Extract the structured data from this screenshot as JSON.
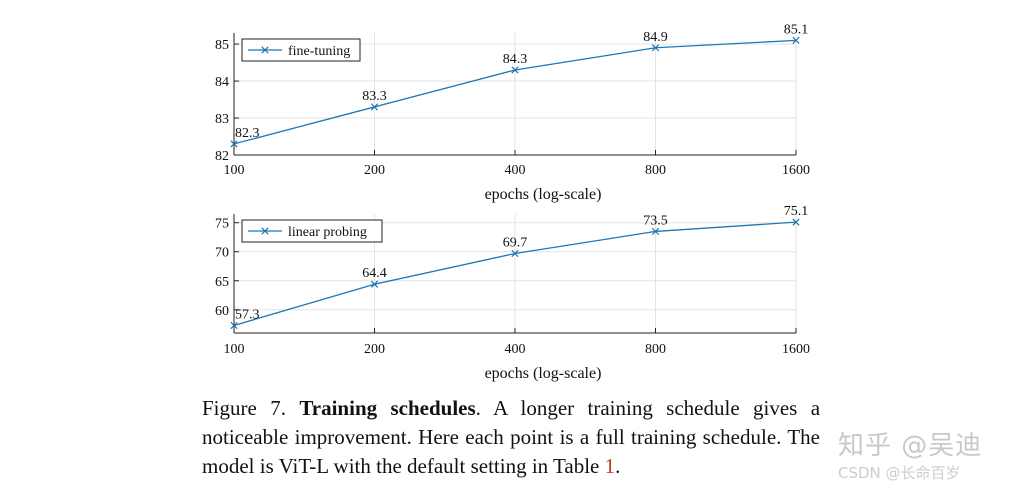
{
  "chart_data": [
    {
      "type": "line",
      "xscale": "log",
      "categories": [
        "100",
        "200",
        "400",
        "800",
        "1600"
      ],
      "x": [
        100,
        200,
        400,
        800,
        1600
      ],
      "series": [
        {
          "name": "fine-tuning",
          "values": [
            82.3,
            83.3,
            84.3,
            84.9,
            85.1
          ]
        }
      ],
      "data_labels": [
        "82.3",
        "83.3",
        "84.3",
        "84.9",
        "85.1"
      ],
      "xlabel": "epochs (log-scale)",
      "ylabel": "",
      "ylim": [
        82,
        85.3
      ],
      "yticks": [
        82,
        83,
        84,
        85
      ],
      "grid": true,
      "legend": "top-left",
      "color": "#1f77b4"
    },
    {
      "type": "line",
      "xscale": "log",
      "categories": [
        "100",
        "200",
        "400",
        "800",
        "1600"
      ],
      "x": [
        100,
        200,
        400,
        800,
        1600
      ],
      "series": [
        {
          "name": "linear probing",
          "values": [
            57.3,
            64.4,
            69.7,
            73.5,
            75.1
          ]
        }
      ],
      "data_labels": [
        "57.3",
        "64.4",
        "69.7",
        "73.5",
        "75.1"
      ],
      "xlabel": "epochs (log-scale)",
      "ylabel": "",
      "ylim": [
        56,
        76.5
      ],
      "yticks": [
        60,
        65,
        70,
        75
      ],
      "grid": true,
      "legend": "top-left",
      "color": "#1f77b4"
    }
  ],
  "caption": {
    "label": "Figure 7.",
    "title": "Training schedules",
    "text_1": ". A longer training schedule gives a noticeable improvement. Here each point is a full training schedule. The model is ViT-L with the default setting in Table ",
    "table_ref": "1",
    "text_2": "."
  },
  "watermark": {
    "line1": "知乎 @吴迪",
    "line2": "CSDN @长命百岁"
  }
}
